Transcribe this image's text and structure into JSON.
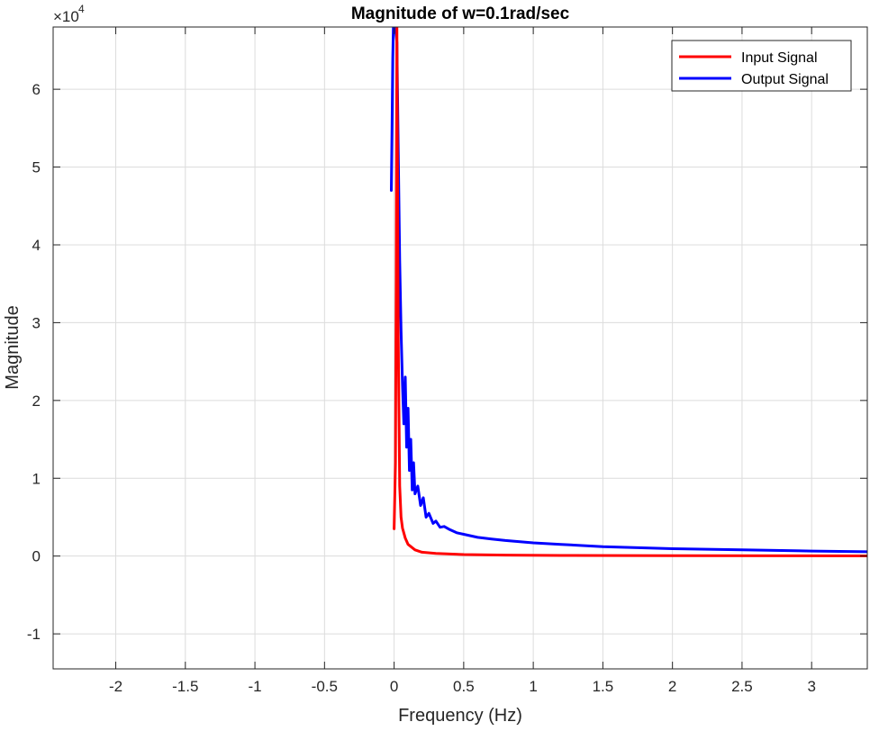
{
  "chart_data": {
    "type": "line",
    "title": "Magnitude of w=0.1rad/sec",
    "xlabel": "Frequency (Hz)",
    "ylabel": "Magnitude",
    "exponent_label": "×10",
    "exponent_power": "4",
    "xlim": [
      -2.45,
      3.4
    ],
    "ylim": [
      -14500,
      68000
    ],
    "grid": true,
    "legend_position": "top-right",
    "x_ticks": [
      -2,
      -1.5,
      -1,
      -0.5,
      0,
      0.5,
      1,
      1.5,
      2,
      2.5,
      3
    ],
    "x_tick_labels": [
      "-2",
      "-1.5",
      "-1",
      "-0.5",
      "0",
      "0.5",
      "1",
      "1.5",
      "2",
      "2.5",
      "3"
    ],
    "y_ticks": [
      -10000,
      0,
      10000,
      20000,
      30000,
      40000,
      50000,
      60000
    ],
    "y_tick_labels": [
      "-1",
      "0",
      "1",
      "2",
      "3",
      "4",
      "5",
      "6"
    ],
    "series": [
      {
        "name": "Input Signal",
        "color": "#ff0000",
        "x": [
          0,
          0.01,
          0.015,
          0.02,
          0.03,
          0.04,
          0.05,
          0.06,
          0.08,
          0.1,
          0.15,
          0.2,
          0.3,
          0.5,
          0.8,
          1.2,
          2,
          3,
          3.4
        ],
        "y": [
          3500,
          12000,
          35000,
          68000,
          28000,
          9000,
          5000,
          3600,
          2300,
          1500,
          800,
          500,
          350,
          200,
          120,
          80,
          50,
          30,
          25
        ]
      },
      {
        "name": "Output Signal",
        "color": "#0000ff",
        "x": [
          -0.02,
          -0.015,
          -0.01,
          -0.005,
          0,
          0.005,
          0.01,
          0.02,
          0.03,
          0.04,
          0.05,
          0.06,
          0.07,
          0.08,
          0.09,
          0.1,
          0.11,
          0.12,
          0.13,
          0.14,
          0.15,
          0.17,
          0.19,
          0.21,
          0.23,
          0.25,
          0.28,
          0.3,
          0.33,
          0.36,
          0.4,
          0.45,
          0.5,
          0.6,
          0.7,
          0.8,
          1,
          1.2,
          1.5,
          2,
          2.5,
          3,
          3.4
        ],
        "y": [
          47000,
          55000,
          64000,
          68000,
          68000,
          68000,
          68000,
          66000,
          52000,
          38000,
          29000,
          22000,
          17000,
          23000,
          14000,
          19000,
          11000,
          15000,
          8500,
          12000,
          8000,
          9000,
          6500,
          7500,
          5000,
          5500,
          4200,
          4500,
          3700,
          3800,
          3400,
          3000,
          2800,
          2400,
          2200,
          2000,
          1700,
          1500,
          1200,
          950,
          800,
          650,
          550
        ]
      }
    ]
  }
}
